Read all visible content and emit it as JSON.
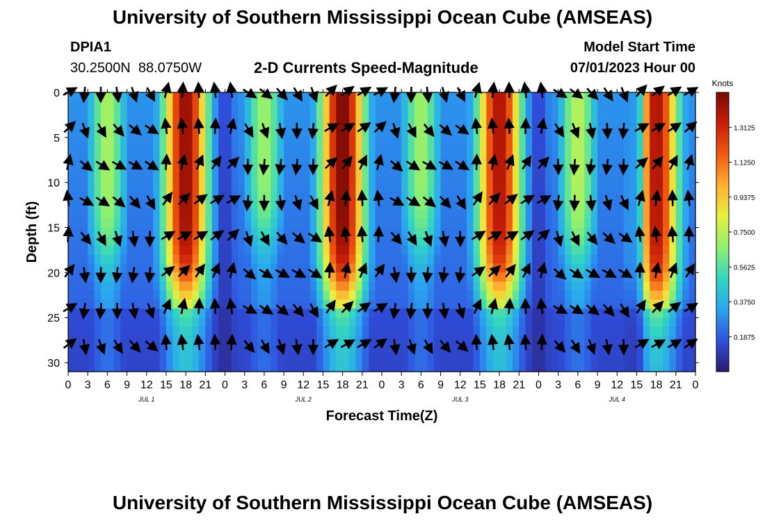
{
  "page": {
    "title": "University of Southern Mississippi Ocean Cube (AMSEAS)",
    "footer_title": "University of Southern Mississippi Ocean Cube (AMSEAS)"
  },
  "station": {
    "id": "DPIA1",
    "lat": "30.2500N",
    "lon": "88.0750W"
  },
  "model": {
    "label": "Model Start Time",
    "value": "07/01/2023 Hour 00"
  },
  "chart_data": {
    "type": "heatmap",
    "title": "2-D Currents Speed-Magnitude",
    "xlabel": "Forecast Time(Z)",
    "ylabel": "Depth (ft)",
    "xlim": [
      0,
      96
    ],
    "ylim": [
      0,
      31
    ],
    "x_ticks": [
      0,
      3,
      6,
      9,
      12,
      15,
      18,
      21,
      24,
      27,
      30,
      33,
      36,
      39,
      42,
      45,
      48,
      51,
      54,
      57,
      60,
      63,
      66,
      69,
      72,
      75,
      78,
      81,
      84,
      87,
      90,
      93,
      96
    ],
    "x_tick_labels": [
      "0",
      "3",
      "6",
      "9",
      "12",
      "15",
      "18",
      "21",
      "0",
      "3",
      "6",
      "9",
      "12",
      "15",
      "18",
      "21",
      "0",
      "3",
      "6",
      "9",
      "12",
      "15",
      "18",
      "21",
      "0",
      "3",
      "6",
      "9",
      "12",
      "15",
      "18",
      "21",
      "0"
    ],
    "y_ticks": [
      0,
      5,
      10,
      15,
      20,
      25,
      30
    ],
    "y_tick_labels": [
      "0",
      "5",
      "10",
      "15",
      "20",
      "25",
      "30"
    ],
    "day_labels": [
      {
        "x": 12,
        "label": "JUL 1"
      },
      {
        "x": 36,
        "label": "JUL 2"
      },
      {
        "x": 60,
        "label": "JUL 3"
      },
      {
        "x": 84,
        "label": "JUL 4"
      }
    ],
    "colorbar": {
      "label": "Knots",
      "range": [
        0,
        1.5
      ],
      "ticks": [
        0.1875,
        0.375,
        0.5625,
        0.75,
        0.9375,
        1.125,
        1.3125
      ],
      "tick_labels": [
        "0.1875",
        "0.3750",
        "0.5625",
        "0.7500",
        "0.9375",
        "1.1250",
        "1.3125"
      ]
    },
    "speed_peaks": [
      {
        "t": 18,
        "speed": 1.45,
        "max_depth": 22,
        "width": 3.5
      },
      {
        "t": 6,
        "speed": 0.72,
        "max_depth": 18,
        "width": 3
      },
      {
        "t": 42,
        "speed": 1.5,
        "max_depth": 22,
        "width": 3.5
      },
      {
        "t": 30,
        "speed": 0.7,
        "max_depth": 16,
        "width": 3
      },
      {
        "t": 66,
        "speed": 1.4,
        "max_depth": 22,
        "width": 3.5
      },
      {
        "t": 54,
        "speed": 0.7,
        "max_depth": 17,
        "width": 3
      },
      {
        "t": 90,
        "speed": 1.4,
        "max_depth": 23,
        "width": 3.5
      },
      {
        "t": 78,
        "speed": 0.75,
        "max_depth": 18,
        "width": 3
      }
    ],
    "vector_depths_ft": [
      0,
      4,
      8,
      12,
      16,
      20,
      24,
      28
    ],
    "vector_times_h": [
      0,
      2.5,
      5,
      7.5,
      10,
      12.5,
      15,
      17.5,
      20,
      22.5,
      25,
      27.5,
      30,
      32.5,
      35,
      37.5,
      40,
      42.5,
      45,
      47.5,
      50,
      52.5,
      55,
      57.5,
      60,
      62.5,
      65,
      67.5,
      70,
      72.5,
      75,
      77.5,
      80,
      82.5,
      85,
      87.5,
      90,
      92.5,
      95
    ],
    "colors": {
      "scale": [
        "#2a1a6e",
        "#3050e0",
        "#2aa6f0",
        "#33d6c0",
        "#8ef070",
        "#e8f040",
        "#ffb030",
        "#f05a10",
        "#c81e08",
        "#7a0a00"
      ]
    }
  }
}
